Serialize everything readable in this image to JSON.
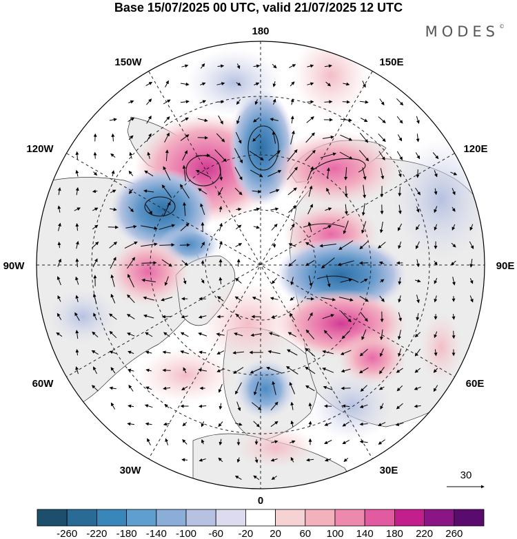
{
  "title": "Base 15/07/2025 00 UTC, valid 21/07/2025 12 UTC",
  "brand": "MODES",
  "brand_mark": "©",
  "longitude_labels": {
    "top": "180",
    "top_left": "150W",
    "top_right": "150E",
    "upper_left": "120W",
    "upper_right": "120E",
    "left": "90W",
    "right": "90E",
    "lower_left": "60W",
    "lower_right": "60E",
    "bottom_left": "30W",
    "bottom_right": "30E",
    "bottom": "0"
  },
  "wind_reference": "30",
  "colorbar": {
    "labels": [
      "-260",
      "-220",
      "-180",
      "-140",
      "-100",
      "-60",
      "-20",
      "20",
      "60",
      "100",
      "140",
      "180",
      "220",
      "260"
    ],
    "colors": [
      "#1d4e6c",
      "#2a6b95",
      "#3a86bb",
      "#5e9fcf",
      "#8aaed8",
      "#b7c2e2",
      "#dcdcee",
      "#ffffff",
      "#f6d2d4",
      "#f3b0bd",
      "#ee89ae",
      "#e25aa0",
      "#c31f8c",
      "#8b1585",
      "#5a0c6e"
    ]
  },
  "anomaly_field": {
    "negative_color": "#4a86bf",
    "positive_color": "#e0559f",
    "land_color": "#ececec"
  }
}
